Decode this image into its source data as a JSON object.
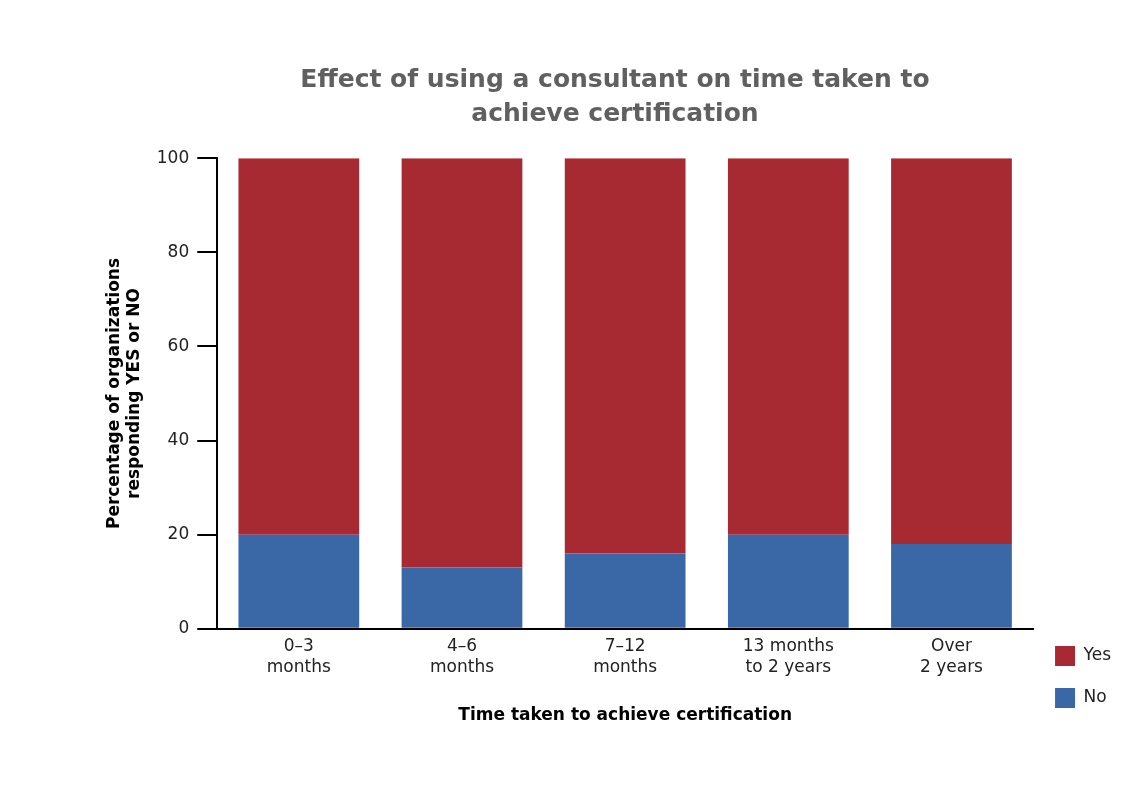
{
  "chart_data": {
    "type": "bar",
    "title": "Effect of using a consultant on time taken to achieve certification",
    "xlabel": "Time taken to achieve certification",
    "ylabel": "Percentage of organizations\nresponding YES or NO",
    "categories": [
      "0–3\nmonths",
      "4–6\nmonths",
      "7–12\nmonths",
      "13 months\nto 2 years",
      "Over\n2 years"
    ],
    "stacked": true,
    "ylim": [
      0,
      100
    ],
    "yticks": [
      0,
      20,
      40,
      60,
      80,
      100
    ],
    "grid": false,
    "legend": "right",
    "series": [
      {
        "name": "No",
        "color": "#3a67a5",
        "values": [
          20,
          13,
          16,
          20,
          18
        ]
      },
      {
        "name": "Yes",
        "color": "#a72a33",
        "values": [
          80,
          87,
          84,
          80,
          82
        ]
      }
    ]
  }
}
